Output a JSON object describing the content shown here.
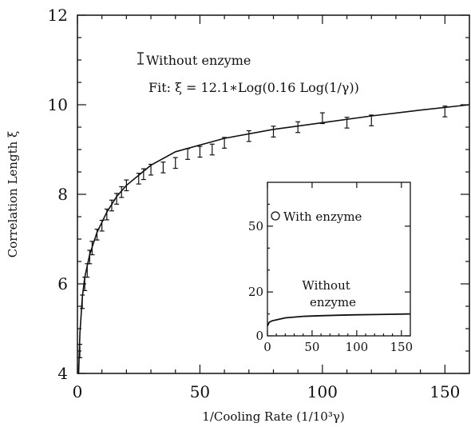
{
  "chart_data": [
    {
      "type": "line",
      "title": "",
      "xlabel": "1/Cooling Rate (1/10³γ)",
      "ylabel": "Correlation Length ξ",
      "xlim": [
        0,
        160
      ],
      "ylim": [
        4,
        12
      ],
      "x_ticks": [
        0,
        50,
        100,
        150
      ],
      "x_tick_labels": [
        "0",
        "50",
        "100",
        "150"
      ],
      "y_ticks": [
        4,
        6,
        8,
        10,
        12
      ],
      "y_tick_labels": [
        "4",
        "6",
        "8",
        "10",
        "12"
      ],
      "grid": false,
      "annotations": [
        "Without enzyme",
        "Fit: ξ = 12.1∗Log(0.16 Log(1/γ))"
      ],
      "series": [
        {
          "name": "Without enzyme",
          "kind": "error-bar points",
          "x": [
            1,
            2,
            3,
            4,
            5,
            6,
            8,
            10,
            12,
            14,
            16,
            18,
            20,
            25,
            27,
            30,
            35,
            40,
            45,
            50,
            55,
            60,
            70,
            80,
            90,
            100,
            110,
            120,
            150
          ],
          "y": [
            4.5,
            5.6,
            6.0,
            6.3,
            6.6,
            6.8,
            7.1,
            7.3,
            7.55,
            7.75,
            7.9,
            8.05,
            8.2,
            8.35,
            8.45,
            8.55,
            8.6,
            8.7,
            8.9,
            8.95,
            9.0,
            9.15,
            9.3,
            9.4,
            9.5,
            9.7,
            9.6,
            9.65,
            9.85
          ],
          "yerr": [
            0.15,
            0.15,
            0.15,
            0.15,
            0.15,
            0.15,
            0.12,
            0.12,
            0.12,
            0.12,
            0.12,
            0.12,
            0.12,
            0.12,
            0.12,
            0.12,
            0.12,
            0.12,
            0.12,
            0.12,
            0.12,
            0.12,
            0.12,
            0.12,
            0.12,
            0.12,
            0.12,
            0.12,
            0.12
          ]
        },
        {
          "name": "Fit",
          "kind": "curve",
          "formula": "12.1*Log(0.16 Log(1/γ))",
          "x": [
            0.5,
            1,
            2,
            3,
            5,
            8,
            12,
            16,
            20,
            30,
            40,
            50,
            60,
            80,
            100,
            120,
            140,
            160
          ],
          "y": [
            4.0,
            4.9,
            5.7,
            6.15,
            6.65,
            7.15,
            7.6,
            7.95,
            8.2,
            8.65,
            8.95,
            9.1,
            9.25,
            9.45,
            9.6,
            9.75,
            9.88,
            10.0
          ]
        }
      ]
    },
    {
      "type": "line",
      "title": "",
      "xlabel": "",
      "ylabel": "",
      "xlim": [
        0,
        160
      ],
      "ylim": [
        0,
        70
      ],
      "x_ticks": [
        0,
        50,
        100,
        150
      ],
      "x_tick_labels": [
        "0",
        "50",
        "100",
        "150"
      ],
      "y_ticks": [
        0,
        20,
        50
      ],
      "y_tick_labels": [
        "0",
        "20",
        "50"
      ],
      "grid": false,
      "legend": "top-left",
      "annotations": [
        "Without enzyme"
      ],
      "series": [
        {
          "name": "With enzyme",
          "marker": "open-circle",
          "x": [],
          "y": []
        },
        {
          "name": "Without enzyme",
          "kind": "curve",
          "x": [
            0,
            2,
            5,
            10,
            20,
            40,
            60,
            80,
            100,
            120,
            140,
            160
          ],
          "y": [
            4.5,
            6.2,
            6.8,
            7.3,
            8.2,
            8.9,
            9.2,
            9.4,
            9.6,
            9.7,
            9.85,
            10.0
          ]
        }
      ]
    }
  ]
}
